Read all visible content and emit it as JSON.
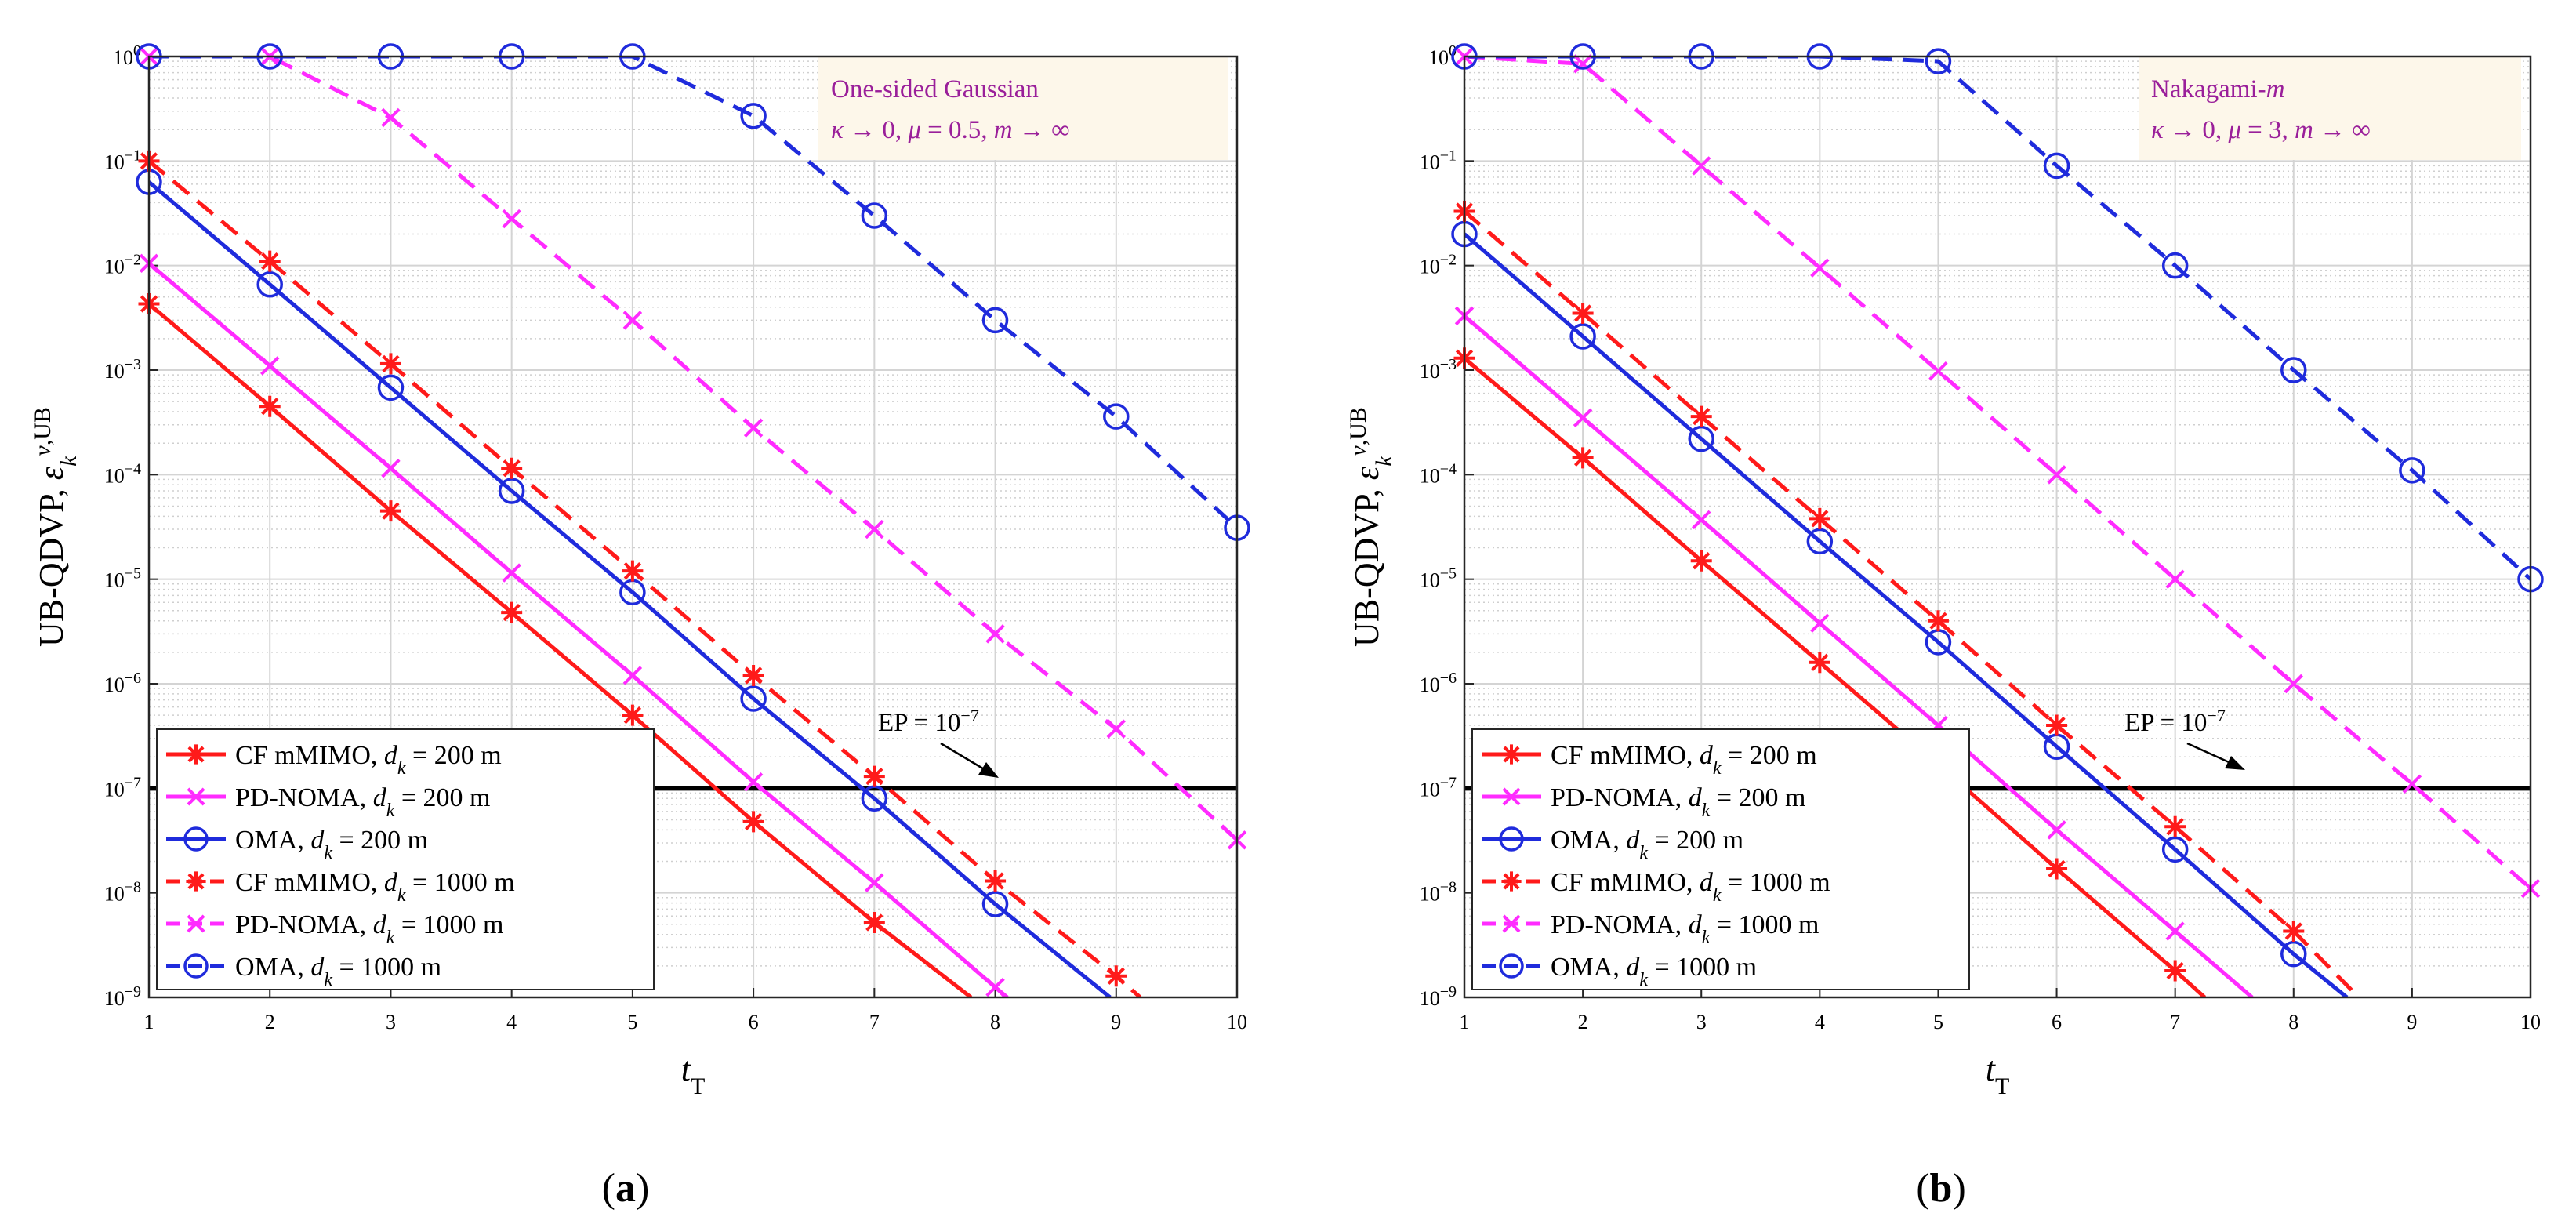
{
  "colors": {
    "red": "#ff1a1a",
    "magenta": "#ff2bff",
    "blue": "#1f2bdc",
    "annotation_text": "#9a1f9a",
    "annotation_bg": "#fdf7ea",
    "ep_line": "#000000"
  },
  "chart_data": [
    {
      "type": "line",
      "panel_label": "(a)",
      "xlabel": "t_T",
      "ylabel": "UB-QDVP, ε_k^{v,UB}",
      "xlim": [
        1,
        10
      ],
      "ylim_log10": [
        -9,
        0
      ],
      "yscale": "log",
      "x_ticks": [
        "1",
        "2",
        "3",
        "4",
        "5",
        "6",
        "7",
        "8",
        "9",
        "10"
      ],
      "y_ticks": [
        "10^0",
        "10^-1",
        "10^-2",
        "10^-3",
        "10^-4",
        "10^-5",
        "10^-6",
        "10^-7",
        "10^-8",
        "10^-9"
      ],
      "grid": true,
      "legend_placement": "bottom-left",
      "annotation": {
        "line1": "One-sided Gaussian",
        "line2": "κ → 0, μ = 0.5, m → ∞"
      },
      "ep_label": "EP = 10^-7",
      "ep_value": 1e-07,
      "series": [
        {
          "name": "CF mMIMO, d_k = 200 m",
          "legend_label": "CF mMIMO, d_k = 200 m",
          "color": "#ff1a1a",
          "dash": "solid",
          "marker": "star",
          "x": [
            1,
            2,
            3,
            4,
            5,
            6,
            7,
            7.8
          ],
          "y": [
            0.0043,
            0.00045,
            4.5e-05,
            4.8e-06,
            5e-07,
            4.8e-08,
            5.2e-09,
            1e-09
          ]
        },
        {
          "name": "PD-NOMA, d_k = 200 m",
          "legend_label": "PD-NOMA, d_k = 200 m",
          "color": "#ff2bff",
          "dash": "solid",
          "marker": "x",
          "x": [
            1,
            2,
            3,
            4,
            5,
            6,
            7,
            8,
            8.1
          ],
          "y": [
            0.0105,
            0.0011,
            0.000115,
            1.15e-05,
            1.2e-06,
            1.15e-07,
            1.25e-08,
            1.25e-09,
            1e-09
          ]
        },
        {
          "name": "OMA, d_k = 200 m",
          "legend_label": "OMA, d_k = 200 m",
          "color": "#1f2bdc",
          "dash": "solid",
          "marker": "circle",
          "x": [
            1,
            2,
            3,
            4,
            5,
            6,
            7,
            8,
            8.95
          ],
          "y": [
            0.063,
            0.0066,
            0.00068,
            7e-05,
            7.5e-06,
            7.2e-07,
            8e-08,
            7.8e-09,
            1e-09
          ]
        },
        {
          "name": "CF mMIMO, d_k = 1000 m",
          "legend_label": "CF mMIMO, d_k = 1000 m",
          "color": "#ff1a1a",
          "dash": "dashed",
          "marker": "star",
          "x": [
            1,
            2,
            3,
            4,
            5,
            6,
            7,
            8,
            9,
            9.2
          ],
          "y": [
            0.1,
            0.011,
            0.00115,
            0.000115,
            1.2e-05,
            1.2e-06,
            1.3e-07,
            1.3e-08,
            1.6e-09,
            1e-09
          ]
        },
        {
          "name": "PD-NOMA, d_k = 1000 m",
          "legend_label": "PD-NOMA, d_k = 1000 m",
          "color": "#ff2bff",
          "dash": "dashed",
          "marker": "x",
          "x": [
            1,
            2,
            3,
            4,
            5,
            6,
            7,
            8,
            9,
            10
          ],
          "y": [
            1,
            1,
            0.26,
            0.028,
            0.003,
            0.00028,
            3e-05,
            3e-06,
            3.7e-07,
            3.2e-08
          ]
        },
        {
          "name": "OMA, d_k = 1000 m",
          "legend_label": "OMA, d_k = 1000 m",
          "color": "#1f2bdc",
          "dash": "dashed",
          "marker": "circle",
          "x": [
            1,
            2,
            3,
            4,
            5,
            6,
            7,
            8,
            9,
            10
          ],
          "y": [
            1,
            1,
            1,
            1,
            1,
            0.27,
            0.03,
            0.003,
            0.00036,
            3.1e-05
          ]
        }
      ]
    },
    {
      "type": "line",
      "panel_label": "(b)",
      "xlabel": "t_T",
      "ylabel": "UB-QDVP, ε_k^{v,UB}",
      "xlim": [
        1,
        10
      ],
      "ylim_log10": [
        -9,
        0
      ],
      "yscale": "log",
      "x_ticks": [
        "1",
        "2",
        "3",
        "4",
        "5",
        "6",
        "7",
        "8",
        "9",
        "10"
      ],
      "y_ticks": [
        "10^0",
        "10^-1",
        "10^-2",
        "10^-3",
        "10^-4",
        "10^-5",
        "10^-6",
        "10^-7",
        "10^-8",
        "10^-9"
      ],
      "grid": true,
      "legend_placement": "bottom-left",
      "annotation": {
        "line1": "Nakagami-m",
        "line2": "κ → 0, μ = 3, m → ∞"
      },
      "ep_label": "EP = 10^-7",
      "ep_value": 1e-07,
      "series": [
        {
          "name": "CF mMIMO, d_k = 200 m",
          "legend_label": "CF mMIMO, d_k = 200 m",
          "color": "#ff1a1a",
          "dash": "solid",
          "marker": "star",
          "x": [
            1,
            2,
            3,
            4,
            5,
            6,
            7,
            7.25
          ],
          "y": [
            0.0013,
            0.000145,
            1.5e-05,
            1.6e-06,
            1.7e-07,
            1.7e-08,
            1.8e-09,
            1e-09
          ]
        },
        {
          "name": "PD-NOMA, d_k = 200 m",
          "legend_label": "PD-NOMA, d_k = 200 m",
          "color": "#ff2bff",
          "dash": "solid",
          "marker": "x",
          "x": [
            1,
            2,
            3,
            4,
            5,
            6,
            7,
            7.65
          ],
          "y": [
            0.0033,
            0.00035,
            3.7e-05,
            3.8e-06,
            4e-07,
            4e-08,
            4.3e-09,
            1e-09
          ]
        },
        {
          "name": "OMA, d_k = 200 m",
          "legend_label": "OMA, d_k = 200 m",
          "color": "#1f2bdc",
          "dash": "solid",
          "marker": "circle",
          "x": [
            1,
            2,
            3,
            4,
            5,
            6,
            7,
            8,
            8.45
          ],
          "y": [
            0.02,
            0.0021,
            0.00022,
            2.3e-05,
            2.5e-06,
            2.5e-07,
            2.6e-08,
            2.6e-09,
            1e-09
          ]
        },
        {
          "name": "CF mMIMO, d_k = 1000 m",
          "legend_label": "CF mMIMO, d_k = 1000 m",
          "color": "#ff1a1a",
          "dash": "dashed",
          "marker": "star",
          "x": [
            1,
            2,
            3,
            4,
            5,
            6,
            7,
            8,
            8.55
          ],
          "y": [
            0.033,
            0.0035,
            0.00036,
            3.8e-05,
            4e-06,
            4e-07,
            4.3e-08,
            4.3e-09,
            1e-09
          ]
        },
        {
          "name": "PD-NOMA, d_k = 1000 m",
          "legend_label": "PD-NOMA, d_k = 1000 m",
          "color": "#ff2bff",
          "dash": "dashed",
          "marker": "x",
          "x": [
            1,
            2,
            3,
            4,
            5,
            6,
            7,
            8,
            9,
            10
          ],
          "y": [
            1,
            0.85,
            0.09,
            0.0095,
            0.00098,
            0.0001,
            1e-05,
            1e-06,
            1.1e-07,
            1.1e-08
          ]
        },
        {
          "name": "OMA, d_k = 1000 m",
          "legend_label": "OMA, d_k = 1000 m",
          "color": "#1f2bdc",
          "dash": "dashed",
          "marker": "circle",
          "x": [
            1,
            2,
            3,
            4,
            5,
            6,
            7,
            8,
            9,
            10
          ],
          "y": [
            1,
            1,
            1,
            1,
            0.9,
            0.09,
            0.01,
            0.001,
            0.00011,
            1e-05
          ]
        }
      ]
    }
  ]
}
